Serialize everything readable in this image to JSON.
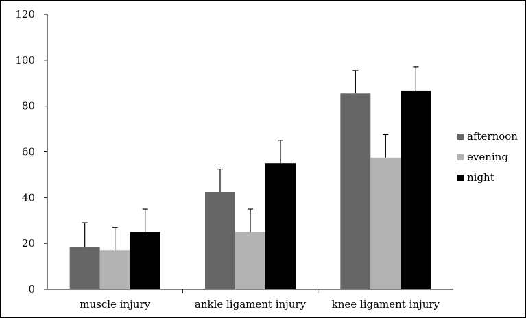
{
  "chart_data": {
    "type": "bar",
    "title": "",
    "xlabel": "",
    "ylabel": "",
    "categories": [
      "muscle injury",
      "ankle ligament injury",
      "knee ligament injury"
    ],
    "ylim": [
      0,
      120
    ],
    "yticks": [
      0,
      20,
      40,
      60,
      80,
      100,
      120
    ],
    "grid": false,
    "legend_position": "right",
    "series": [
      {
        "name": "afternoon",
        "color": "#666666",
        "values": [
          18.5,
          42.5,
          85.5
        ],
        "errors": [
          10.5,
          10.0,
          10.0
        ]
      },
      {
        "name": "evening",
        "color": "#b3b3b3",
        "values": [
          17.0,
          25.0,
          57.5
        ],
        "errors": [
          10.0,
          10.0,
          10.0
        ]
      },
      {
        "name": "night",
        "color": "#000000",
        "values": [
          25.0,
          55.0,
          86.5
        ],
        "errors": [
          10.0,
          10.0,
          10.5
        ]
      }
    ]
  }
}
